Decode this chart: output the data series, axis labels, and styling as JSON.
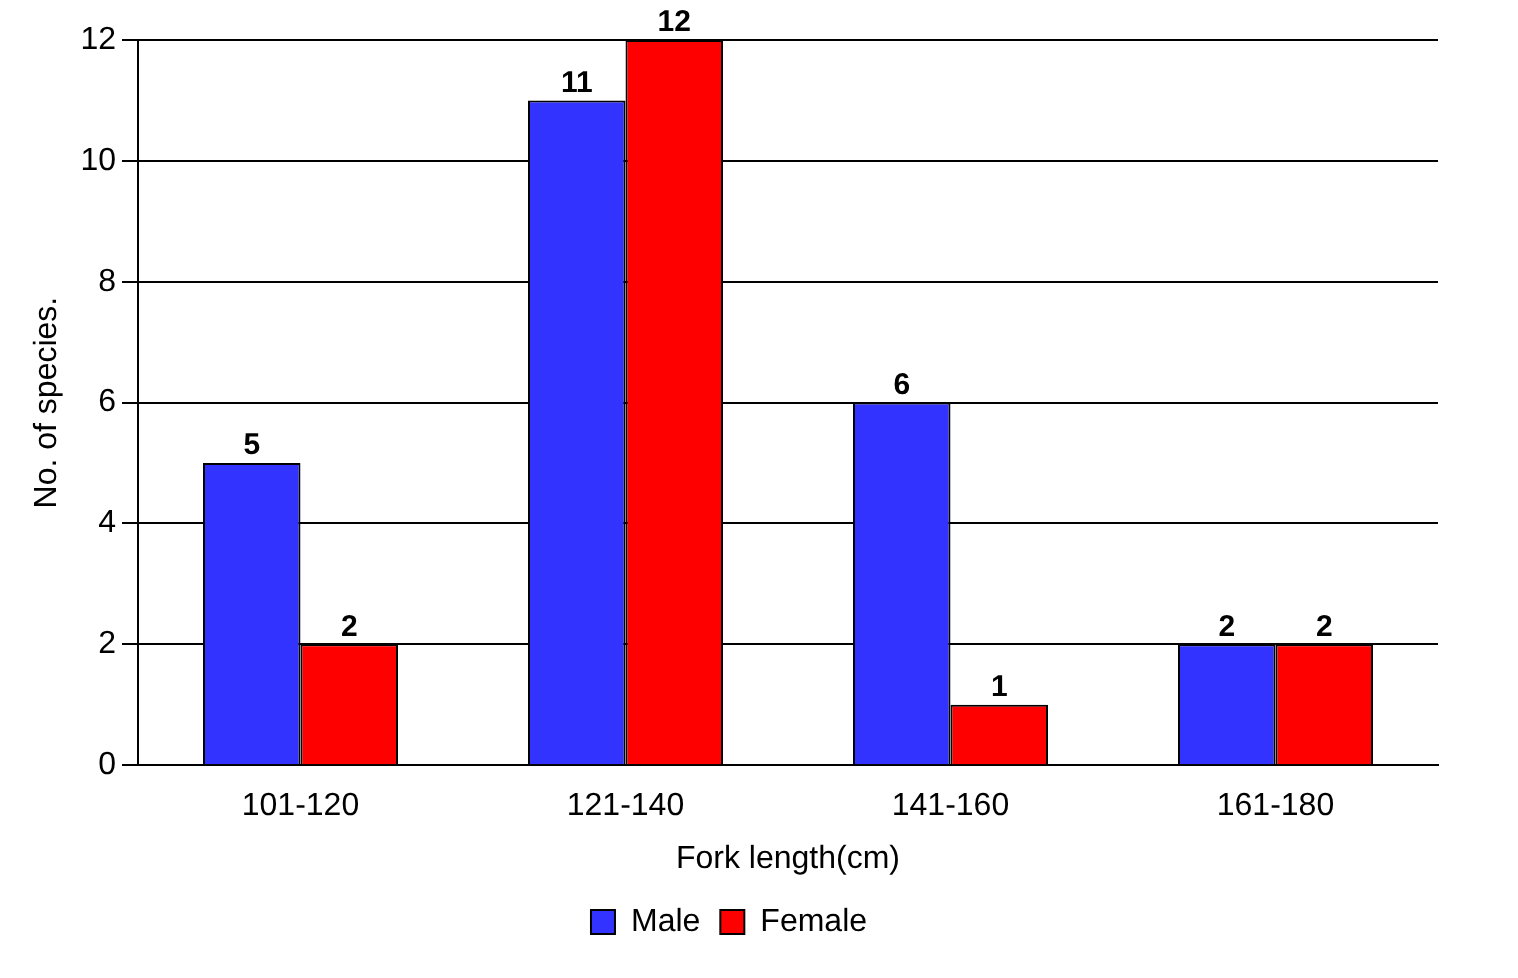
{
  "chart_data": {
    "type": "bar",
    "xlabel": "Fork length(cm)",
    "ylabel": "No. of species.",
    "categories": [
      "101-120",
      "121-140",
      "141-160",
      "161-180"
    ],
    "series": [
      {
        "name": "Male",
        "color": "#3333ff",
        "values": [
          5,
          11,
          6,
          2
        ]
      },
      {
        "name": "Female",
        "color": "#ff0000",
        "values": [
          2,
          12,
          1,
          2
        ]
      }
    ],
    "ylim": [
      0,
      12
    ],
    "yticks": [
      0,
      2,
      4,
      6,
      8,
      10,
      12
    ],
    "grid": "y",
    "legend": "bottom",
    "data_labels": true
  }
}
